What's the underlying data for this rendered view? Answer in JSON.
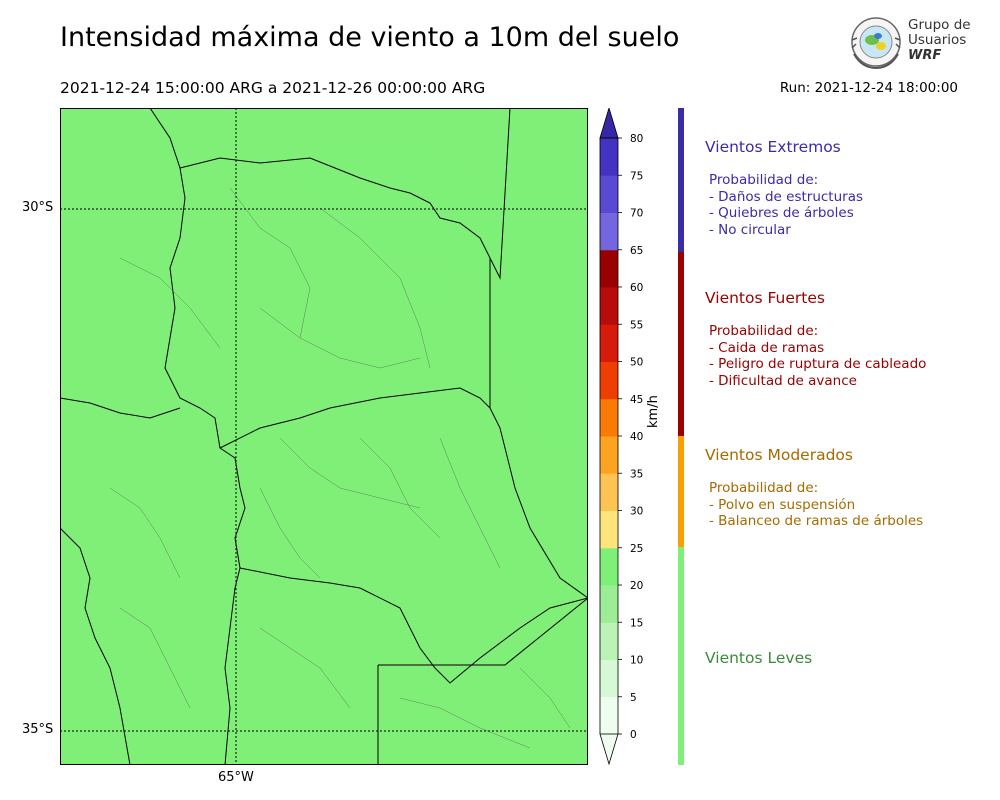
{
  "title": "Intensidad máxima de viento a 10m del suelo",
  "period": "2021-12-24 15:00:00 ARG  a  2021-12-26 00:00:00 ARG",
  "run": "Run: 2021-12-24 18:00:00",
  "logo": {
    "line1": "Grupo de",
    "line2": "Usuarios",
    "line3": "WRF"
  },
  "map": {
    "lat_labels": [
      "30°S",
      "35°S"
    ],
    "lon_labels": [
      "65°W"
    ],
    "field": "wind_max_10m"
  },
  "colorbar": {
    "unit": "km/h",
    "ticks": [
      "0",
      "5",
      "10",
      "15",
      "20",
      "25",
      "30",
      "35",
      "40",
      "45",
      "50",
      "55",
      "60",
      "65",
      "70",
      "75",
      "80"
    ],
    "colors": [
      "#eefdee",
      "#d6f8d4",
      "#baf3b5",
      "#9ded96",
      "#7ef078",
      "#fde57c",
      "#fdc454",
      "#fca421",
      "#f97b05",
      "#ef3e04",
      "#d61a0c",
      "#b80b0b",
      "#990000",
      "#7466df",
      "#5a49d2",
      "#4432c2",
      "#3527a8"
    ]
  },
  "categories": [
    {
      "title": "Vientos Extremos",
      "color": "#3b2ba8",
      "bar": "#3b2ba8",
      "items": [
        "Probabilidad de:",
        "- Daños de estructuras",
        "- Quiebres de árboles",
        "- No circular"
      ]
    },
    {
      "title": "Vientos Fuertes",
      "color": "#990000",
      "bar": "#990000",
      "items": [
        "Probabilidad de:",
        "- Caida de ramas",
        "- Peligro de ruptura de cableado",
        "- Dificultad de avance"
      ]
    },
    {
      "title": "Vientos Moderados",
      "color": "#a66a00",
      "bar": "#f7a000",
      "items": [
        "Probabilidad de:",
        "- Polvo en suspensión",
        "- Balanceo de ramas de árboles"
      ]
    },
    {
      "title": "Vientos Leves",
      "color": "#3a8a3a",
      "bar": "#7ef078",
      "items": []
    }
  ]
}
